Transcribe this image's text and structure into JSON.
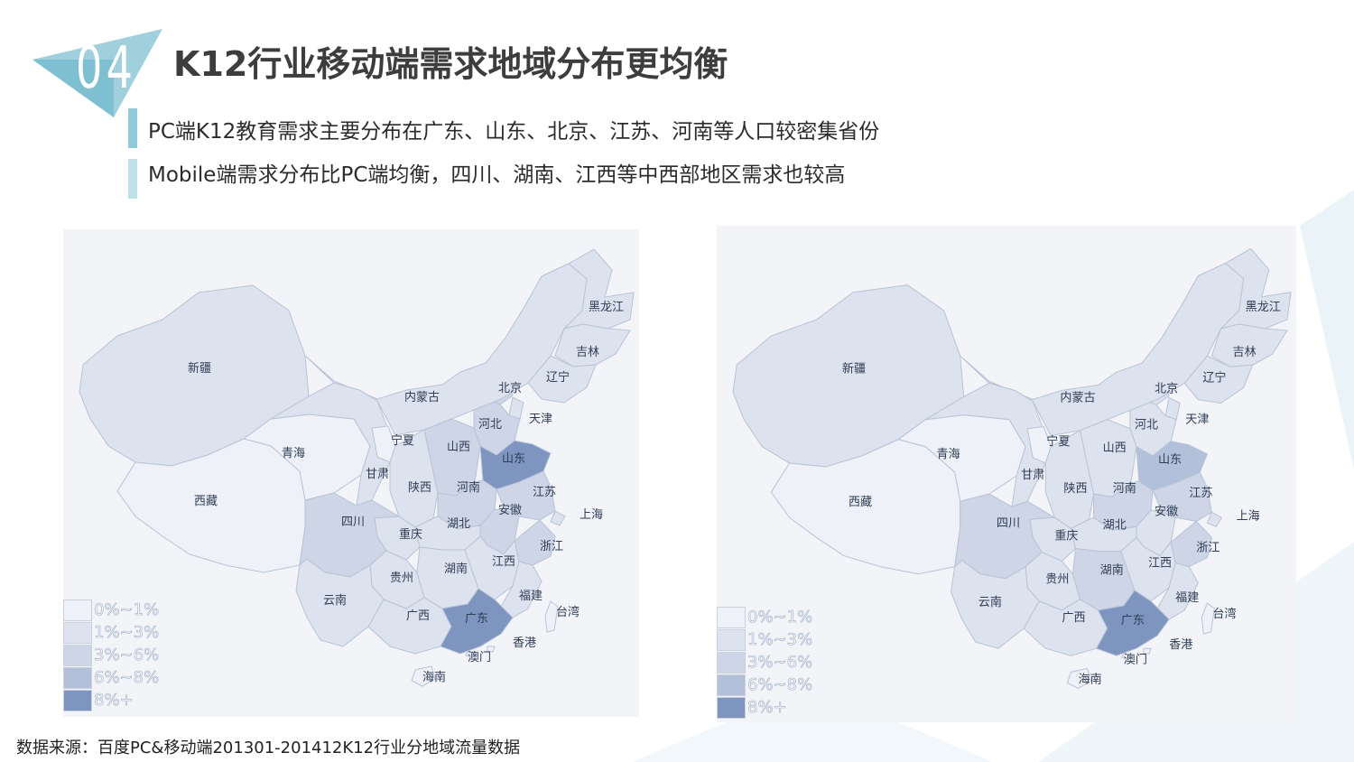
{
  "header": {
    "section_number": "04",
    "title": "K12行业移动端需求地域分布更均衡"
  },
  "bullets": [
    "PC端K12教育需求主要分布在广东、山东、北京、江苏、河南等人口较密集省份",
    "Mobile端需求分布比PC端均衡，四川、湖南、江西等中西部地区需求也较高"
  ],
  "legend": [
    {
      "label": "0%~1%",
      "color": "#eef1f7"
    },
    {
      "label": "1%~3%",
      "color": "#dde3ee"
    },
    {
      "label": "3%~6%",
      "color": "#cdd5e6"
    },
    {
      "label": "6%~8%",
      "color": "#b3c0da"
    },
    {
      "label": "8%+",
      "color": "#7d95bf"
    }
  ],
  "maps": [
    {
      "name": "pc",
      "provinces": [
        {
          "name": "黑龙江",
          "level": 1
        },
        {
          "name": "吉林",
          "level": 1
        },
        {
          "name": "辽宁",
          "level": 1
        },
        {
          "name": "北京",
          "level": 2
        },
        {
          "name": "天津",
          "level": 1
        },
        {
          "name": "河北",
          "level": 2
        },
        {
          "name": "山西",
          "level": 2
        },
        {
          "name": "山东",
          "level": 4
        },
        {
          "name": "内蒙古",
          "level": 1
        },
        {
          "name": "新疆",
          "level": 1
        },
        {
          "name": "青海",
          "level": 0
        },
        {
          "name": "西藏",
          "level": 0
        },
        {
          "name": "甘肃",
          "level": 1
        },
        {
          "name": "宁夏",
          "level": 0
        },
        {
          "name": "陕西",
          "level": 1
        },
        {
          "name": "河南",
          "level": 2
        },
        {
          "name": "江苏",
          "level": 2
        },
        {
          "name": "安徽",
          "level": 2
        },
        {
          "name": "上海",
          "level": 1
        },
        {
          "name": "四川",
          "level": 2
        },
        {
          "name": "重庆",
          "level": 1
        },
        {
          "name": "湖北",
          "level": 1
        },
        {
          "name": "浙江",
          "level": 2
        },
        {
          "name": "贵州",
          "level": 1
        },
        {
          "name": "湖南",
          "level": 1
        },
        {
          "name": "江西",
          "level": 1
        },
        {
          "name": "云南",
          "level": 1
        },
        {
          "name": "福建",
          "level": 1
        },
        {
          "name": "广西",
          "level": 1
        },
        {
          "name": "广东",
          "level": 4
        },
        {
          "name": "台湾",
          "level": 0
        },
        {
          "name": "香港",
          "level": 0
        },
        {
          "name": "澳门",
          "level": 0
        },
        {
          "name": "海南",
          "level": 0
        }
      ]
    },
    {
      "name": "mobile",
      "provinces": [
        {
          "name": "黑龙江",
          "level": 1
        },
        {
          "name": "吉林",
          "level": 1
        },
        {
          "name": "辽宁",
          "level": 1
        },
        {
          "name": "北京",
          "level": 1
        },
        {
          "name": "天津",
          "level": 1
        },
        {
          "name": "河北",
          "level": 1
        },
        {
          "name": "山西",
          "level": 1
        },
        {
          "name": "山东",
          "level": 3
        },
        {
          "name": "内蒙古",
          "level": 1
        },
        {
          "name": "新疆",
          "level": 1
        },
        {
          "name": "青海",
          "level": 0
        },
        {
          "name": "西藏",
          "level": 0
        },
        {
          "name": "甘肃",
          "level": 1
        },
        {
          "name": "宁夏",
          "level": 0
        },
        {
          "name": "陕西",
          "level": 1
        },
        {
          "name": "河南",
          "level": 2
        },
        {
          "name": "江苏",
          "level": 2
        },
        {
          "name": "安徽",
          "level": 1
        },
        {
          "name": "上海",
          "level": 1
        },
        {
          "name": "四川",
          "level": 2
        },
        {
          "name": "重庆",
          "level": 1
        },
        {
          "name": "湖北",
          "level": 1
        },
        {
          "name": "浙江",
          "level": 2
        },
        {
          "name": "贵州",
          "level": 1
        },
        {
          "name": "湖南",
          "level": 2
        },
        {
          "name": "江西",
          "level": 1
        },
        {
          "name": "云南",
          "level": 1
        },
        {
          "name": "福建",
          "level": 1
        },
        {
          "name": "广西",
          "level": 1
        },
        {
          "name": "广东",
          "level": 4
        },
        {
          "name": "台湾",
          "level": 0
        },
        {
          "name": "香港",
          "level": 0
        },
        {
          "name": "澳门",
          "level": 0
        },
        {
          "name": "海南",
          "level": 0
        }
      ]
    }
  ],
  "source": "数据来源：百度PC&移动端201301-201412K12行业分地域流量数据"
}
